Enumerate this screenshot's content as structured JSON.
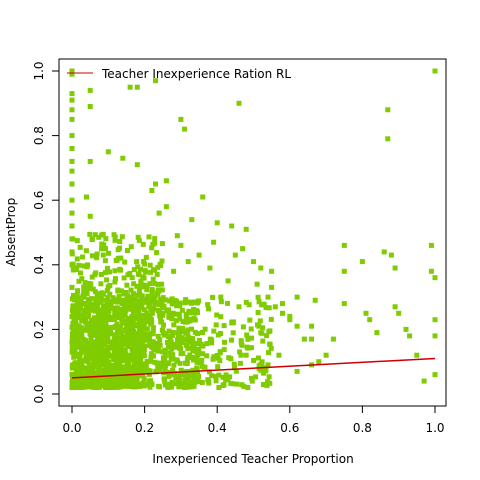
{
  "chart_data": {
    "type": "scatter",
    "title": "",
    "xlabel": "Inexperienced Teacher Proportion",
    "ylabel": "AbsentProp",
    "xlim": [
      0,
      1
    ],
    "ylim": [
      0,
      1
    ],
    "x_ticks": [
      "0.0",
      "0.2",
      "0.4",
      "0.6",
      "0.8",
      "1.0"
    ],
    "y_ticks": [
      "0.0",
      "0.2",
      "0.4",
      "0.6",
      "0.8",
      "1.0"
    ],
    "grid": false,
    "legend": {
      "position": "top-left",
      "entries": [
        {
          "label": "Teacher Inexperience Ration RL",
          "color": "#cc0000"
        }
      ]
    },
    "colors": {
      "points": "#7fcc00",
      "line": "#cc0000"
    },
    "regression_line": {
      "x": [
        0.0,
        1.0
      ],
      "y": [
        0.05,
        0.11
      ]
    },
    "series": [
      {
        "points": [
          [
            0.0,
            1.0
          ],
          [
            0.0,
            0.99
          ],
          [
            0.0,
            0.93
          ],
          [
            0.0,
            0.91
          ],
          [
            0.0,
            0.88
          ],
          [
            0.0,
            0.85
          ],
          [
            0.0,
            0.8
          ],
          [
            0.0,
            0.76
          ],
          [
            0.0,
            0.72
          ],
          [
            0.0,
            0.69
          ],
          [
            0.0,
            0.65
          ],
          [
            0.0,
            0.6
          ],
          [
            0.0,
            0.56
          ],
          [
            0.0,
            0.52
          ],
          [
            0.0,
            0.48
          ],
          [
            0.0,
            0.44
          ],
          [
            0.0,
            0.4
          ],
          [
            0.0,
            0.33
          ],
          [
            0.0,
            0.24
          ],
          [
            0.0,
            0.16
          ],
          [
            0.0,
            0.06
          ],
          [
            0.0,
            0.02
          ],
          [
            0.05,
            0.94
          ],
          [
            0.05,
            0.89
          ],
          [
            0.05,
            0.72
          ],
          [
            0.04,
            0.61
          ],
          [
            0.05,
            0.55
          ],
          [
            0.16,
            0.95
          ],
          [
            0.18,
            0.95
          ],
          [
            0.23,
            0.97
          ],
          [
            0.14,
            0.73
          ],
          [
            0.18,
            0.71
          ],
          [
            0.1,
            0.75
          ],
          [
            0.3,
            0.85
          ],
          [
            0.31,
            0.82
          ],
          [
            0.46,
            0.9
          ],
          [
            0.87,
            0.88
          ],
          [
            0.87,
            0.79
          ],
          [
            1.0,
            1.0
          ],
          [
            0.23,
            0.65
          ],
          [
            0.22,
            0.63
          ],
          [
            0.26,
            0.66
          ],
          [
            0.26,
            0.58
          ],
          [
            0.24,
            0.56
          ],
          [
            0.29,
            0.49
          ],
          [
            0.36,
            0.61
          ],
          [
            0.33,
            0.54
          ],
          [
            0.4,
            0.53
          ],
          [
            0.44,
            0.52
          ],
          [
            0.39,
            0.47
          ],
          [
            0.45,
            0.43
          ],
          [
            0.47,
            0.45
          ],
          [
            0.48,
            0.51
          ],
          [
            0.5,
            0.41
          ],
          [
            0.52,
            0.39
          ],
          [
            0.55,
            0.38
          ],
          [
            0.51,
            0.34
          ],
          [
            0.54,
            0.3
          ],
          [
            0.56,
            0.27
          ],
          [
            0.58,
            0.25
          ],
          [
            0.6,
            0.23
          ],
          [
            0.62,
            0.21
          ],
          [
            0.64,
            0.17
          ],
          [
            0.66,
            0.17
          ],
          [
            0.7,
            0.12
          ],
          [
            0.72,
            0.17
          ],
          [
            0.75,
            0.46
          ],
          [
            0.75,
            0.38
          ],
          [
            0.75,
            0.28
          ],
          [
            0.8,
            0.41
          ],
          [
            0.81,
            0.25
          ],
          [
            0.82,
            0.23
          ],
          [
            0.84,
            0.19
          ],
          [
            0.86,
            0.44
          ],
          [
            0.88,
            0.43
          ],
          [
            0.89,
            0.39
          ],
          [
            0.89,
            0.27
          ],
          [
            0.9,
            0.25
          ],
          [
            0.92,
            0.2
          ],
          [
            0.93,
            0.18
          ],
          [
            0.95,
            0.12
          ],
          [
            0.97,
            0.04
          ],
          [
            0.99,
            0.46
          ],
          [
            0.99,
            0.38
          ],
          [
            1.0,
            0.36
          ],
          [
            1.0,
            0.23
          ],
          [
            1.0,
            0.18
          ],
          [
            1.0,
            0.06
          ],
          [
            0.6,
            0.24
          ],
          [
            0.62,
            0.3
          ],
          [
            0.66,
            0.21
          ],
          [
            0.67,
            0.29
          ],
          [
            0.58,
            0.28
          ],
          [
            0.55,
            0.33
          ],
          [
            0.52,
            0.19
          ],
          [
            0.57,
            0.12
          ],
          [
            0.54,
            0.09
          ],
          [
            0.62,
            0.07
          ],
          [
            0.66,
            0.09
          ],
          [
            0.68,
            0.1
          ],
          [
            0.48,
            0.12
          ],
          [
            0.42,
            0.16
          ],
          [
            0.44,
            0.22
          ],
          [
            0.46,
            0.27
          ],
          [
            0.41,
            0.3
          ],
          [
            0.43,
            0.35
          ],
          [
            0.38,
            0.39
          ],
          [
            0.35,
            0.43
          ],
          [
            0.32,
            0.41
          ],
          [
            0.3,
            0.46
          ],
          [
            0.28,
            0.38
          ]
        ],
        "clusters": [
          {
            "x_range": [
              0.0,
              0.2
            ],
            "y_range": [
              0.02,
              0.3
            ],
            "count": 1100
          },
          {
            "x_range": [
              0.2,
              0.35
            ],
            "y_range": [
              0.02,
              0.3
            ],
            "count": 320
          },
          {
            "x_range": [
              0.0,
              0.25
            ],
            "y_range": [
              0.3,
              0.5
            ],
            "count": 170
          },
          {
            "x_range": [
              0.35,
              0.55
            ],
            "y_range": [
              0.02,
              0.3
            ],
            "count": 130
          }
        ]
      }
    ]
  }
}
